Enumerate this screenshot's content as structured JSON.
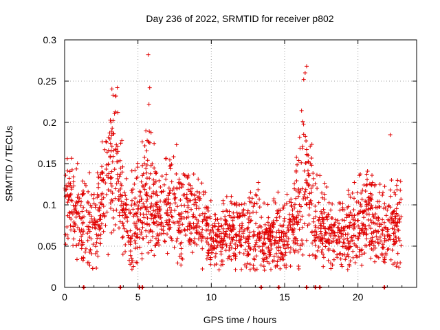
{
  "chart_data": {
    "type": "scatter",
    "title": "Day 236 of 2022, SRMTID for receiver p802",
    "xlabel": "GPS time / hours",
    "ylabel": "SRMTID / TECUs",
    "xlim": [
      0,
      24
    ],
    "ylim": [
      0,
      0.3
    ],
    "x_ticks": [
      0,
      5,
      10,
      15,
      20
    ],
    "x_tick_labels": [
      "0",
      "5",
      "10",
      "15",
      "20"
    ],
    "y_ticks": [
      0,
      0.05,
      0.1,
      0.15,
      0.2,
      0.25,
      0.3
    ],
    "y_tick_labels": [
      "0",
      "0.05",
      "0.1",
      "0.15",
      "0.2",
      "0.25",
      "0.3"
    ],
    "grid": true,
    "marker": "plus",
    "color": "#e00000",
    "envelope": {
      "hours": [
        0,
        0.5,
        1,
        1.5,
        2,
        2.5,
        3,
        3.5,
        4,
        4.5,
        5,
        5.5,
        6,
        6.5,
        7,
        7.5,
        8,
        8.5,
        9,
        9.5,
        10,
        10.5,
        11,
        11.5,
        12,
        12.5,
        13,
        13.5,
        14,
        14.5,
        15,
        15.5,
        16,
        16.5,
        17,
        17.5,
        18,
        18.5,
        19,
        19.5,
        20,
        20.5,
        21,
        21.5,
        22,
        22.5,
        23
      ],
      "typical_srmtid": [
        0.12,
        0.1,
        0.09,
        0.08,
        0.07,
        0.1,
        0.14,
        0.17,
        0.1,
        0.08,
        0.09,
        0.12,
        0.11,
        0.09,
        0.09,
        0.1,
        0.09,
        0.09,
        0.08,
        0.08,
        0.06,
        0.06,
        0.07,
        0.07,
        0.065,
        0.06,
        0.08,
        0.05,
        0.065,
        0.07,
        0.06,
        0.07,
        0.1,
        0.13,
        0.08,
        0.07,
        0.07,
        0.06,
        0.065,
        0.07,
        0.075,
        0.08,
        0.08,
        0.075,
        0.07,
        0.075,
        0.08
      ],
      "spread": [
        0.03,
        0.03,
        0.03,
        0.04,
        0.03,
        0.04,
        0.05,
        0.05,
        0.04,
        0.035,
        0.04,
        0.05,
        0.045,
        0.035,
        0.035,
        0.04,
        0.04,
        0.035,
        0.03,
        0.03,
        0.025,
        0.025,
        0.025,
        0.025,
        0.025,
        0.025,
        0.035,
        0.025,
        0.025,
        0.03,
        0.025,
        0.03,
        0.05,
        0.06,
        0.04,
        0.03,
        0.03,
        0.025,
        0.025,
        0.03,
        0.03,
        0.035,
        0.035,
        0.035,
        0.03,
        0.035,
        0.035
      ]
    },
    "outliers": [
      {
        "x": 5.7,
        "y": 0.282
      },
      {
        "x": 16.5,
        "y": 0.268
      },
      {
        "x": 16.4,
        "y": 0.26
      },
      {
        "x": 16.3,
        "y": 0.252
      },
      {
        "x": 5.8,
        "y": 0.242
      },
      {
        "x": 3.3,
        "y": 0.233
      },
      {
        "x": 3.5,
        "y": 0.232
      },
      {
        "x": 5.75,
        "y": 0.222
      },
      {
        "x": 22.2,
        "y": 0.185
      }
    ],
    "zero_points": [
      1.3,
      3.8,
      5.1,
      5.3,
      13.4,
      14.6,
      16.5,
      17.1,
      17.4,
      21.8
    ]
  }
}
